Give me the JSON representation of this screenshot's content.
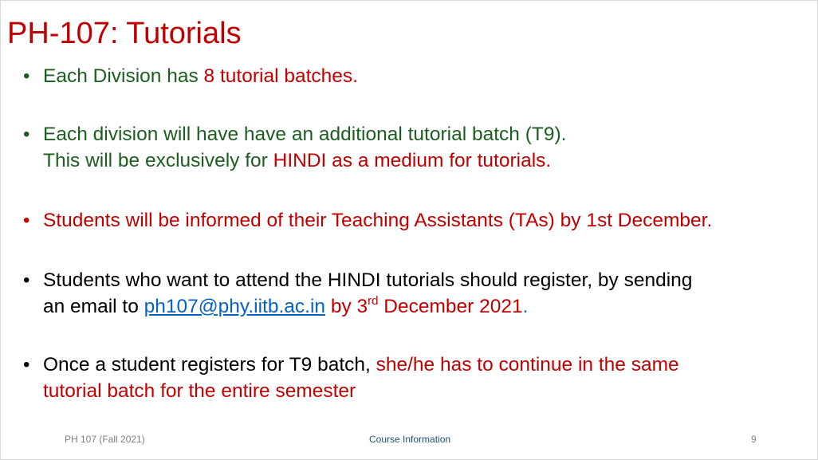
{
  "slide": {
    "title": "PH-107: Tutorials",
    "bullets": [
      {
        "bullet_char": "•",
        "parts": [
          "Each Division has ",
          "8 tutorial batches."
        ]
      },
      {
        "bullet_char": "•",
        "line1": "Each division will have have an additional tutorial batch (T9).",
        "line2_parts": [
          "This will be exclusively for ",
          "HINDI as a medium for tutorials."
        ]
      },
      {
        "bullet_char": "•",
        "text": "Students will be informed of their Teaching Assistants (TAs) by 1st December."
      },
      {
        "bullet_char": "•",
        "line1": "Students who want to attend the HINDI tutorials should register, by sending",
        "line2_parts": [
          "an email to ",
          "ph107@phy.iitb.ac.in",
          " by 3",
          "rd",
          " December 2021",
          "."
        ]
      },
      {
        "bullet_char": "•",
        "line1_parts": [
          "Once a student registers for T9 batch, ",
          "she/he has to continue in the same"
        ],
        "line2": "tutorial batch for the entire semester"
      }
    ],
    "footer": {
      "left": "PH 107 (Fall 2021)",
      "center": "Course Information",
      "right": "9"
    },
    "colors": {
      "title": "#c00000",
      "green_text": "#1b5e20",
      "red_text": "#c00000",
      "link": "#0563c1"
    }
  }
}
